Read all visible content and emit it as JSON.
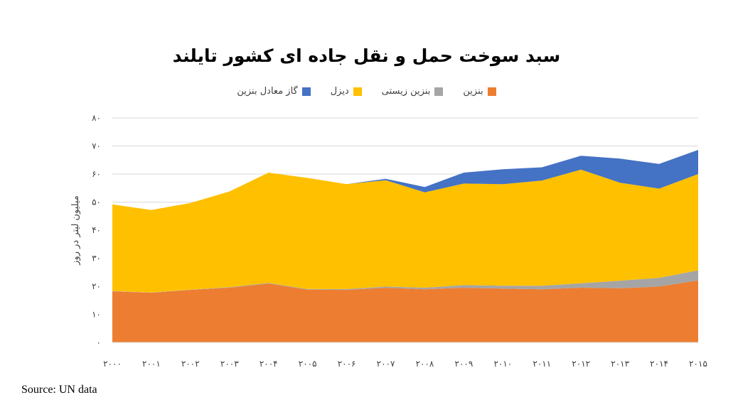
{
  "chart_data": {
    "type": "area",
    "stacked": true,
    "title": "سبد سوخت حمل و نقل جاده ای کشور تایلند",
    "ylabel": "میلیون لیتر در روز",
    "xlabel": "",
    "source": "Source: UN data",
    "ylim": [
      0,
      80
    ],
    "yticks": [
      "۰",
      "۱۰",
      "۲۰",
      "۳۰",
      "۴۰",
      "۵۰",
      "۶۰",
      "۷۰",
      "۸۰"
    ],
    "x": [
      "۲۰۰۰",
      "۲۰۰۱",
      "۲۰۰۲",
      "۲۰۰۳",
      "۲۰۰۴",
      "۲۰۰۵",
      "۲۰۰۶",
      "۲۰۰۷",
      "۲۰۰۸",
      "۲۰۰۹",
      "۲۰۱۰",
      "۲۰۱۱",
      "۲۰۱۲",
      "۲۰۱۳",
      "۲۰۱۴",
      "۲۰۱۵"
    ],
    "grid": true,
    "legend_position": "top",
    "series": [
      {
        "name": "بنزین",
        "color": "#ED7D31",
        "values": [
          18.2,
          17.7,
          18.7,
          19.5,
          21.0,
          18.8,
          18.7,
          19.5,
          18.9,
          19.5,
          19.2,
          18.9,
          19.5,
          19.3,
          19.9,
          22.1
        ]
      },
      {
        "name": "بنزین زیستی",
        "color": "#A5A5A5",
        "values": [
          0.1,
          0.1,
          0.1,
          0.2,
          0.2,
          0.2,
          0.3,
          0.4,
          0.6,
          0.9,
          1.0,
          1.3,
          1.6,
          2.7,
          3.1,
          3.6
        ]
      },
      {
        "name": "دیزل",
        "color": "#FFC000",
        "values": [
          30.9,
          29.4,
          30.9,
          34.1,
          39.3,
          39.6,
          37.4,
          37.9,
          34.0,
          36.2,
          36.2,
          37.5,
          40.5,
          34.9,
          31.8,
          34.3
        ]
      },
      {
        "name": "گاز معادل بنزین",
        "color": "#4472C4",
        "values": [
          0,
          0,
          0,
          0,
          0,
          0,
          0,
          0.5,
          1.9,
          3.9,
          5.3,
          4.7,
          4.9,
          8.6,
          8.8,
          8.6
        ]
      }
    ]
  }
}
